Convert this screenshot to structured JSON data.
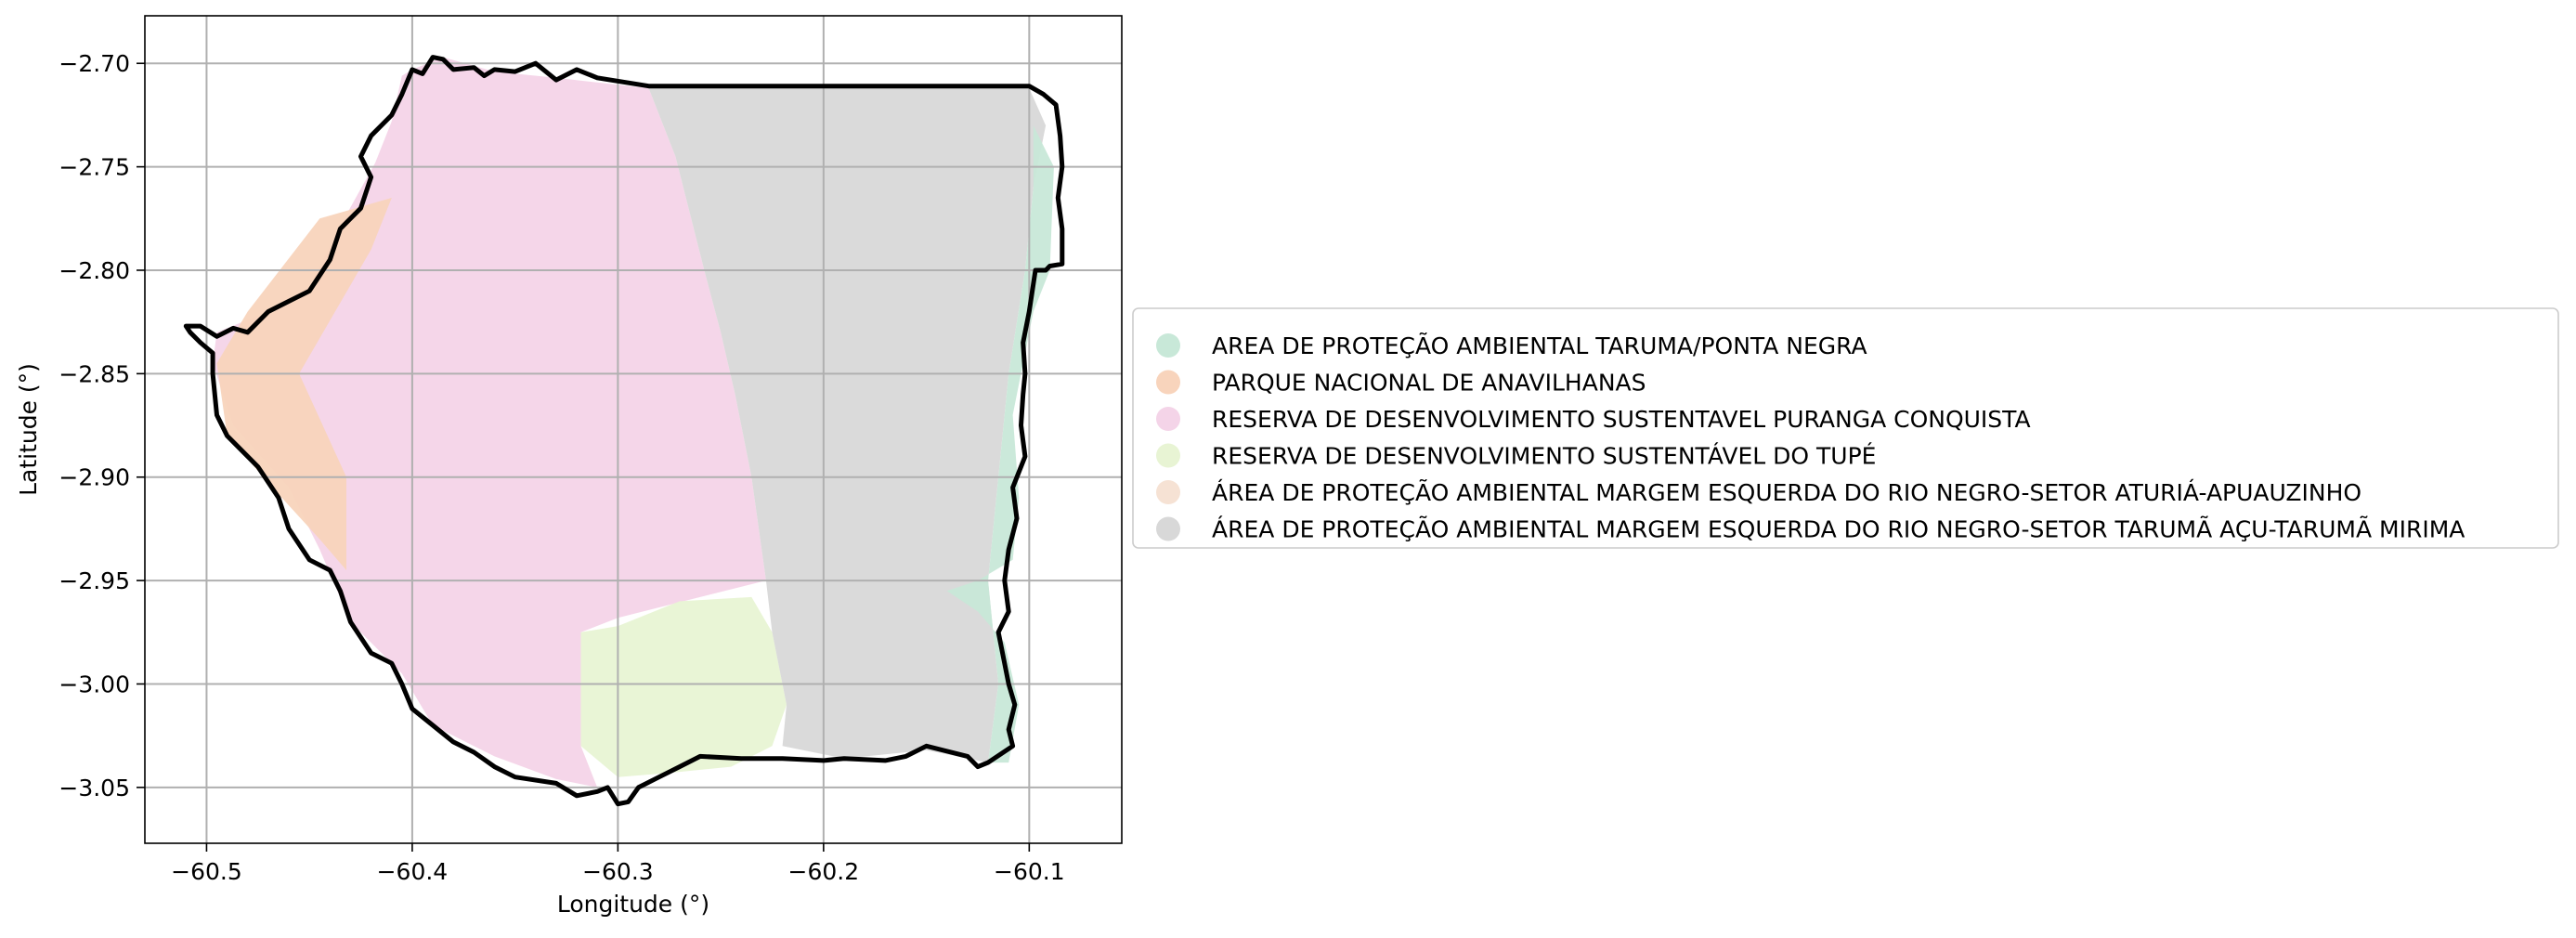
{
  "chart_data": {
    "type": "map",
    "xlabel": "Longitude (°)",
    "ylabel": "Latitude (°)",
    "xlim": [
      -60.53,
      -60.055
    ],
    "ylim": [
      -3.077,
      -2.677
    ],
    "xticks": [
      -60.5,
      -60.4,
      -60.3,
      -60.2,
      -60.1
    ],
    "xtick_labels": [
      "−60.5",
      "−60.4",
      "−60.3",
      "−60.2",
      "−60.1"
    ],
    "yticks": [
      -2.7,
      -2.75,
      -2.8,
      -2.85,
      -2.9,
      -2.95,
      -3.0,
      -3.05
    ],
    "ytick_labels": [
      "−2.70",
      "−2.75",
      "−2.80",
      "−2.85",
      "−2.90",
      "−2.95",
      "−3.00",
      "−3.05"
    ],
    "grid": true,
    "legend_position": "right",
    "boundary_color": "#000000",
    "legend": [
      {
        "label": "AREA DE PROTEÇÃO AMBIENTAL TARUMA/PONTA NEGRA",
        "color": "#c8e8d8"
      },
      {
        "label": "PARQUE NACIONAL DE ANAVILHANAS",
        "color": "#f8d4bc"
      },
      {
        "label": "RESERVA DE DESENVOLVIMENTO SUSTENTAVEL PURANGA CONQUISTA",
        "color": "#f4d4e8"
      },
      {
        "label": "RESERVA DE DESENVOLVIMENTO SUSTENTÁVEL DO TUPÉ",
        "color": "#e8f4d4"
      },
      {
        "label": "ÁREA DE PROTEÇÃO AMBIENTAL MARGEM ESQUERDA DO RIO NEGRO-SETOR ATURIÁ-APUAUZINHO",
        "color": "#f6e2d4"
      },
      {
        "label": "ÁREA DE PROTEÇÃO AMBIENTAL MARGEM ESQUERDA DO RIO NEGRO-SETOR TARUMÃ AÇU-TARUMÃ MIRIMA",
        "color": "#d8d8d8"
      }
    ],
    "areas": [
      {
        "name": "RESERVA DE DESENVOLVIMENTO SUSTENTAVEL PURANGA CONQUISTA",
        "color": "#f4d4e8",
        "coords": [
          [
            -60.4,
            -2.703
          ],
          [
            -60.385,
            -2.697
          ],
          [
            -60.36,
            -2.704
          ],
          [
            -60.33,
            -2.707
          ],
          [
            -60.285,
            -2.712
          ],
          [
            -60.272,
            -2.745
          ],
          [
            -60.258,
            -2.8
          ],
          [
            -60.25,
            -2.83
          ],
          [
            -60.243,
            -2.86
          ],
          [
            -60.235,
            -2.9
          ],
          [
            -60.228,
            -2.95
          ],
          [
            -60.26,
            -2.958
          ],
          [
            -60.3,
            -2.968
          ],
          [
            -60.318,
            -2.975
          ],
          [
            -60.318,
            -3.03
          ],
          [
            -60.31,
            -3.05
          ],
          [
            -60.33,
            -3.046
          ],
          [
            -60.36,
            -3.035
          ],
          [
            -60.39,
            -3.02
          ],
          [
            -60.405,
            -2.995
          ],
          [
            -60.43,
            -2.97
          ],
          [
            -60.445,
            -2.935
          ],
          [
            -60.46,
            -2.905
          ],
          [
            -60.487,
            -2.875
          ],
          [
            -60.497,
            -2.845
          ],
          [
            -60.495,
            -2.83
          ],
          [
            -60.47,
            -2.82
          ],
          [
            -60.45,
            -2.808
          ],
          [
            -60.437,
            -2.782
          ],
          [
            -60.418,
            -2.748
          ],
          [
            -60.41,
            -2.728
          ],
          [
            -60.405,
            -2.706
          ]
        ]
      },
      {
        "name": "PARQUE NACIONAL DE ANAVILHANAS",
        "color": "#f8d4bc",
        "coords": [
          [
            -60.42,
            -2.79
          ],
          [
            -60.41,
            -2.765
          ],
          [
            -60.445,
            -2.775
          ],
          [
            -60.48,
            -2.82
          ],
          [
            -60.495,
            -2.845
          ],
          [
            -60.49,
            -2.88
          ],
          [
            -60.468,
            -2.905
          ],
          [
            -60.445,
            -2.93
          ],
          [
            -60.432,
            -2.945
          ],
          [
            -60.432,
            -2.9
          ],
          [
            -60.455,
            -2.85
          ]
        ]
      },
      {
        "name": "RESERVA DE DESENVOLVIMENTO SUSTENTÁVEL DO TUPÉ",
        "color": "#e8f4d4",
        "coords": [
          [
            -60.318,
            -2.975
          ],
          [
            -60.3,
            -2.972
          ],
          [
            -60.27,
            -2.96
          ],
          [
            -60.235,
            -2.958
          ],
          [
            -60.225,
            -2.975
          ],
          [
            -60.218,
            -3.01
          ],
          [
            -60.225,
            -3.03
          ],
          [
            -60.245,
            -3.04
          ],
          [
            -60.275,
            -3.043
          ],
          [
            -60.3,
            -3.045
          ],
          [
            -60.318,
            -3.03
          ]
        ]
      },
      {
        "name": "ÁREA DE PROTEÇÃO AMBIENTAL MARGEM ESQUERDA DO RIO NEGRO-SETOR TARUMÃ AÇU-TARUMÃ MIRIMA",
        "color": "#d8d8d8",
        "coords": [
          [
            -60.285,
            -2.712
          ],
          [
            -60.1,
            -2.712
          ],
          [
            -60.092,
            -2.73
          ],
          [
            -60.098,
            -2.76
          ],
          [
            -60.102,
            -2.8
          ],
          [
            -60.11,
            -2.85
          ],
          [
            -60.115,
            -2.9
          ],
          [
            -60.12,
            -2.95
          ],
          [
            -60.115,
            -3.0
          ],
          [
            -60.12,
            -3.038
          ],
          [
            -60.15,
            -3.032
          ],
          [
            -60.19,
            -3.036
          ],
          [
            -60.22,
            -3.03
          ],
          [
            -60.218,
            -3.01
          ],
          [
            -60.225,
            -2.975
          ],
          [
            -60.228,
            -2.95
          ],
          [
            -60.235,
            -2.9
          ],
          [
            -60.243,
            -2.86
          ],
          [
            -60.25,
            -2.83
          ],
          [
            -60.258,
            -2.8
          ],
          [
            -60.272,
            -2.745
          ]
        ]
      },
      {
        "name": "AREA DE PROTEÇÃO AMBIENTAL TARUMA/PONTA NEGRA",
        "color": "#c8e8d8",
        "coords": [
          [
            -60.098,
            -2.73
          ],
          [
            -60.088,
            -2.75
          ],
          [
            -60.09,
            -2.8
          ],
          [
            -60.098,
            -2.82
          ],
          [
            -60.102,
            -2.84
          ],
          [
            -60.108,
            -2.87
          ],
          [
            -60.105,
            -2.91
          ],
          [
            -60.108,
            -2.94
          ],
          [
            -60.125,
            -2.95
          ],
          [
            -60.14,
            -2.955
          ],
          [
            -60.125,
            -2.965
          ],
          [
            -60.112,
            -2.98
          ],
          [
            -60.105,
            -3.01
          ],
          [
            -60.11,
            -3.038
          ],
          [
            -60.12,
            -3.038
          ],
          [
            -60.115,
            -3.0
          ],
          [
            -60.12,
            -2.95
          ],
          [
            -60.115,
            -2.9
          ],
          [
            -60.11,
            -2.85
          ],
          [
            -60.102,
            -2.8
          ],
          [
            -60.098,
            -2.76
          ]
        ]
      }
    ],
    "boundary": [
      [
        -60.4,
        -2.703
      ],
      [
        -60.395,
        -2.705
      ],
      [
        -60.39,
        -2.697
      ],
      [
        -60.385,
        -2.698
      ],
      [
        -60.38,
        -2.703
      ],
      [
        -60.37,
        -2.702
      ],
      [
        -60.365,
        -2.706
      ],
      [
        -60.36,
        -2.703
      ],
      [
        -60.35,
        -2.704
      ],
      [
        -60.34,
        -2.7
      ],
      [
        -60.33,
        -2.708
      ],
      [
        -60.32,
        -2.703
      ],
      [
        -60.31,
        -2.707
      ],
      [
        -60.285,
        -2.711
      ],
      [
        -60.2,
        -2.711
      ],
      [
        -60.1,
        -2.711
      ],
      [
        -60.093,
        -2.715
      ],
      [
        -60.087,
        -2.72
      ],
      [
        -60.085,
        -2.735
      ],
      [
        -60.084,
        -2.75
      ],
      [
        -60.086,
        -2.765
      ],
      [
        -60.084,
        -2.78
      ],
      [
        -60.084,
        -2.797
      ],
      [
        -60.09,
        -2.798
      ],
      [
        -60.092,
        -2.8
      ],
      [
        -60.097,
        -2.8
      ],
      [
        -60.1,
        -2.82
      ],
      [
        -60.103,
        -2.835
      ],
      [
        -60.102,
        -2.85
      ],
      [
        -60.103,
        -2.86
      ],
      [
        -60.104,
        -2.875
      ],
      [
        -60.102,
        -2.89
      ],
      [
        -60.108,
        -2.905
      ],
      [
        -60.106,
        -2.92
      ],
      [
        -60.11,
        -2.935
      ],
      [
        -60.112,
        -2.95
      ],
      [
        -60.11,
        -2.965
      ],
      [
        -60.115,
        -2.975
      ],
      [
        -60.112,
        -2.99
      ],
      [
        -60.11,
        -3.0
      ],
      [
        -60.107,
        -3.01
      ],
      [
        -60.11,
        -3.022
      ],
      [
        -60.108,
        -3.03
      ],
      [
        -60.12,
        -3.038
      ],
      [
        -60.125,
        -3.04
      ],
      [
        -60.13,
        -3.035
      ],
      [
        -60.15,
        -3.03
      ],
      [
        -60.16,
        -3.035
      ],
      [
        -60.17,
        -3.037
      ],
      [
        -60.19,
        -3.036
      ],
      [
        -60.2,
        -3.037
      ],
      [
        -60.22,
        -3.036
      ],
      [
        -60.24,
        -3.036
      ],
      [
        -60.26,
        -3.035
      ],
      [
        -60.27,
        -3.04
      ],
      [
        -60.28,
        -3.045
      ],
      [
        -60.29,
        -3.05
      ],
      [
        -60.295,
        -3.057
      ],
      [
        -60.3,
        -3.058
      ],
      [
        -60.305,
        -3.05
      ],
      [
        -60.31,
        -3.052
      ],
      [
        -60.32,
        -3.054
      ],
      [
        -60.33,
        -3.048
      ],
      [
        -60.35,
        -3.045
      ],
      [
        -60.36,
        -3.04
      ],
      [
        -60.37,
        -3.033
      ],
      [
        -60.38,
        -3.028
      ],
      [
        -60.39,
        -3.02
      ],
      [
        -60.4,
        -3.012
      ],
      [
        -60.405,
        -3.0
      ],
      [
        -60.41,
        -2.99
      ],
      [
        -60.42,
        -2.985
      ],
      [
        -60.43,
        -2.97
      ],
      [
        -60.435,
        -2.955
      ],
      [
        -60.44,
        -2.945
      ],
      [
        -60.45,
        -2.94
      ],
      [
        -60.46,
        -2.925
      ],
      [
        -60.465,
        -2.91
      ],
      [
        -60.475,
        -2.895
      ],
      [
        -60.49,
        -2.88
      ],
      [
        -60.495,
        -2.87
      ],
      [
        -60.497,
        -2.85
      ],
      [
        -60.497,
        -2.84
      ],
      [
        -60.503,
        -2.835
      ],
      [
        -60.508,
        -2.83
      ],
      [
        -60.51,
        -2.827
      ],
      [
        -60.503,
        -2.827
      ],
      [
        -60.495,
        -2.832
      ],
      [
        -60.487,
        -2.828
      ],
      [
        -60.48,
        -2.83
      ],
      [
        -60.47,
        -2.82
      ],
      [
        -60.46,
        -2.815
      ],
      [
        -60.45,
        -2.81
      ],
      [
        -60.44,
        -2.795
      ],
      [
        -60.435,
        -2.78
      ],
      [
        -60.425,
        -2.77
      ],
      [
        -60.42,
        -2.755
      ],
      [
        -60.425,
        -2.745
      ],
      [
        -60.42,
        -2.735
      ],
      [
        -60.41,
        -2.725
      ],
      [
        -60.405,
        -2.715
      ],
      [
        -60.4,
        -2.703
      ]
    ]
  }
}
